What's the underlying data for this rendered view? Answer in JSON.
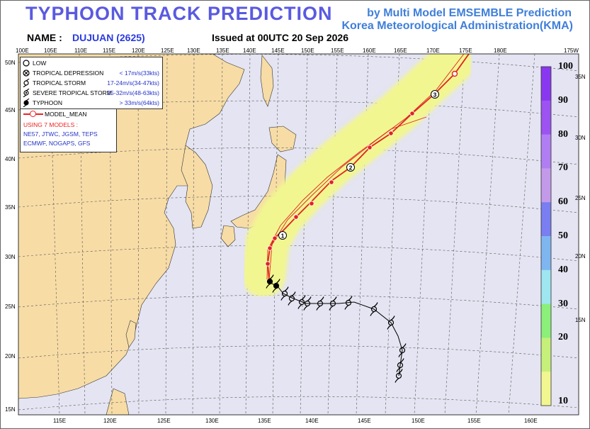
{
  "header": {
    "title": "TYPHOON  TRACK  PREDICTION",
    "agency_line1": "by Multi Model EMSEMBLE Prediction",
    "agency_line2": "Korea Meteorological Administration(KMA)",
    "name_label": "NAME :",
    "name_value": "DUJUAN (2625)",
    "issued": "Issued at  00UTC 20 Sep 2026"
  },
  "legend": {
    "items": [
      {
        "name": "LOW",
        "speed": "",
        "icon": "open-circle-icon"
      },
      {
        "name": "TROPICAL DEPRESSION",
        "speed": "< 17m/s(33kts)",
        "icon": "crossed-circle-icon"
      },
      {
        "name": "TROPICAL STORM",
        "speed": "17-24m/s(34-47kts)",
        "icon": "open-storm-icon"
      },
      {
        "name": "SEVERE TROPICAL STORM",
        "speed": "25-32m/s(48-63kts)",
        "icon": "dotted-storm-icon"
      },
      {
        "name": "TYPHOON",
        "speed": "> 33m/s(64kts)",
        "icon": "filled-storm-icon"
      }
    ],
    "model_mean_label": "MODEL_MEAN",
    "using_label": "USING 7 MODELS :",
    "models_line1": "NE57, JTWC, JGSM, TEPS",
    "models_line2": "ECMWF, NOGAPS, GFS"
  },
  "colorbar": {
    "labels": [
      "100",
      "90",
      "80",
      "70",
      "60",
      "50",
      "40",
      "30",
      "20",
      "10"
    ],
    "colors": [
      "#8a38f0",
      "#9d52f2",
      "#b07ef2",
      "#c39ae9",
      "#7a7ef0",
      "#7fb6f0",
      "#9ee6f0",
      "#8af07a",
      "#c6f07a",
      "#f2f690"
    ]
  },
  "axes": {
    "top_lon": [
      "100E",
      "105E",
      "110E",
      "115E",
      "120E",
      "125E",
      "130E",
      "135E",
      "140E",
      "145E",
      "150E",
      "155E",
      "160E",
      "165E",
      "170E",
      "175E",
      "180E",
      "175W"
    ],
    "bottom_lon": [
      "115E",
      "120E",
      "125E",
      "130E",
      "135E",
      "140E",
      "145E",
      "150E",
      "155E",
      "160E"
    ],
    "left_lat": [
      "50N",
      "45N",
      "40N",
      "35N",
      "30N",
      "25N",
      "20N",
      "15N"
    ],
    "right_lat": [
      "35N",
      "30N",
      "25N",
      "20N",
      "15N"
    ]
  },
  "track": {
    "day_markers": [
      "1",
      "2",
      "3"
    ],
    "colors": {
      "mean": "#e22222",
      "observed": "#000000",
      "land": "#f7dca6",
      "sea": "#e4e4f2",
      "grid": "#555555"
    }
  }
}
